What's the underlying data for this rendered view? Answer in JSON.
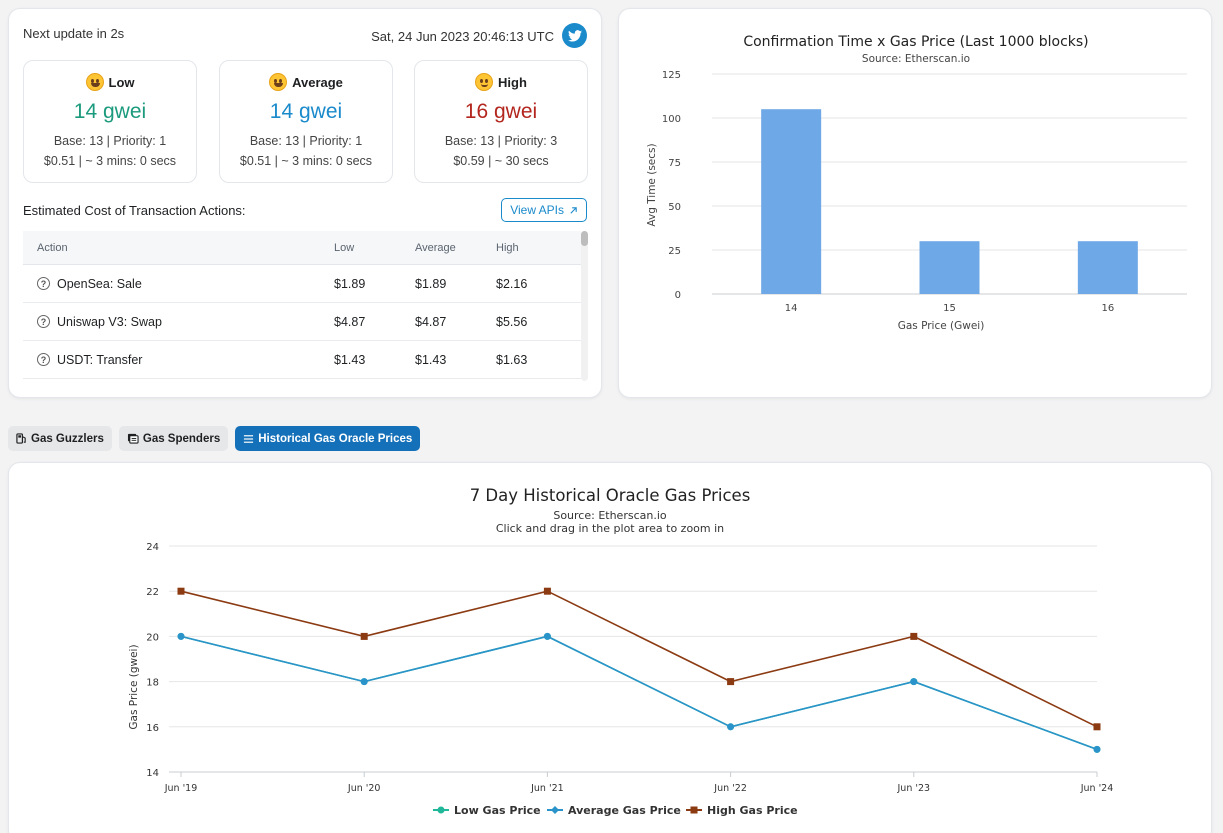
{
  "header": {
    "next_update": "Next update in 2s",
    "timestamp": "Sat, 24 Jun 2023 20:46:13 UTC"
  },
  "tiers": [
    {
      "label": "Low",
      "price": "14 gwei",
      "base": "Base: 13 | Priority: 1",
      "cost": "$0.51 | ~ 3 mins: 0 secs",
      "color": "#1b9a7d"
    },
    {
      "label": "Average",
      "price": "14 gwei",
      "base": "Base: 13 | Priority: 1",
      "cost": "$0.51 | ~ 3 mins: 0 secs",
      "color": "#1a8acb"
    },
    {
      "label": "High",
      "price": "16 gwei",
      "base": "Base: 13 | Priority: 3",
      "cost": "$0.59 | ~ 30 secs",
      "color": "#b3261e"
    }
  ],
  "estimated": {
    "label": "Estimated Cost of Transaction Actions:",
    "view_apis": "View APIs",
    "columns": [
      "Action",
      "Low",
      "Average",
      "High"
    ],
    "rows": [
      {
        "action": "OpenSea: Sale",
        "low": "$1.89",
        "avg": "$1.89",
        "high": "$2.16"
      },
      {
        "action": "Uniswap V3: Swap",
        "low": "$4.87",
        "avg": "$4.87",
        "high": "$5.56"
      },
      {
        "action": "USDT: Transfer",
        "low": "$1.43",
        "avg": "$1.43",
        "high": "$1.63"
      }
    ]
  },
  "tabs": {
    "guzzlers": "Gas Guzzlers",
    "spenders": "Gas Spenders",
    "historical": "Historical Gas Oracle Prices"
  },
  "chart_data": [
    {
      "type": "bar",
      "title": "Confirmation Time x Gas Price (Last 1000 blocks)",
      "subtitle": "Source: Etherscan.io",
      "xlabel": "Gas Price (Gwei)",
      "ylabel": "Avg Time (secs)",
      "categories": [
        "14",
        "15",
        "16"
      ],
      "values": [
        105,
        30,
        30
      ],
      "yticks": [
        "0",
        "25",
        "50",
        "75",
        "100",
        "125"
      ],
      "ylim": [
        0,
        125
      ],
      "color": "#6fa8e6"
    },
    {
      "type": "line",
      "title": "7 Day Historical Oracle Gas Prices",
      "subtitle": "Source: Etherscan.io",
      "subtitle2": "Click and drag in the plot area to zoom in",
      "ylabel": "Gas Price (gwei)",
      "categories": [
        "Jun '19",
        "Jun '20",
        "Jun '21",
        "Jun '22",
        "Jun '23",
        "Jun '24"
      ],
      "yticks": [
        "14",
        "16",
        "18",
        "20",
        "22",
        "24"
      ],
      "ylim": [
        14,
        24
      ],
      "series": [
        {
          "name": "Low Gas Price",
          "values": [
            20,
            18,
            20,
            16,
            18,
            15
          ],
          "color": "#21b89a"
        },
        {
          "name": "Average Gas Price",
          "values": [
            20,
            18,
            20,
            16,
            18,
            15
          ],
          "color": "#2a93c9"
        },
        {
          "name": "High Gas Price",
          "values": [
            22,
            20,
            22,
            18,
            20,
            16
          ],
          "color": "#8b3a12"
        }
      ]
    }
  ]
}
